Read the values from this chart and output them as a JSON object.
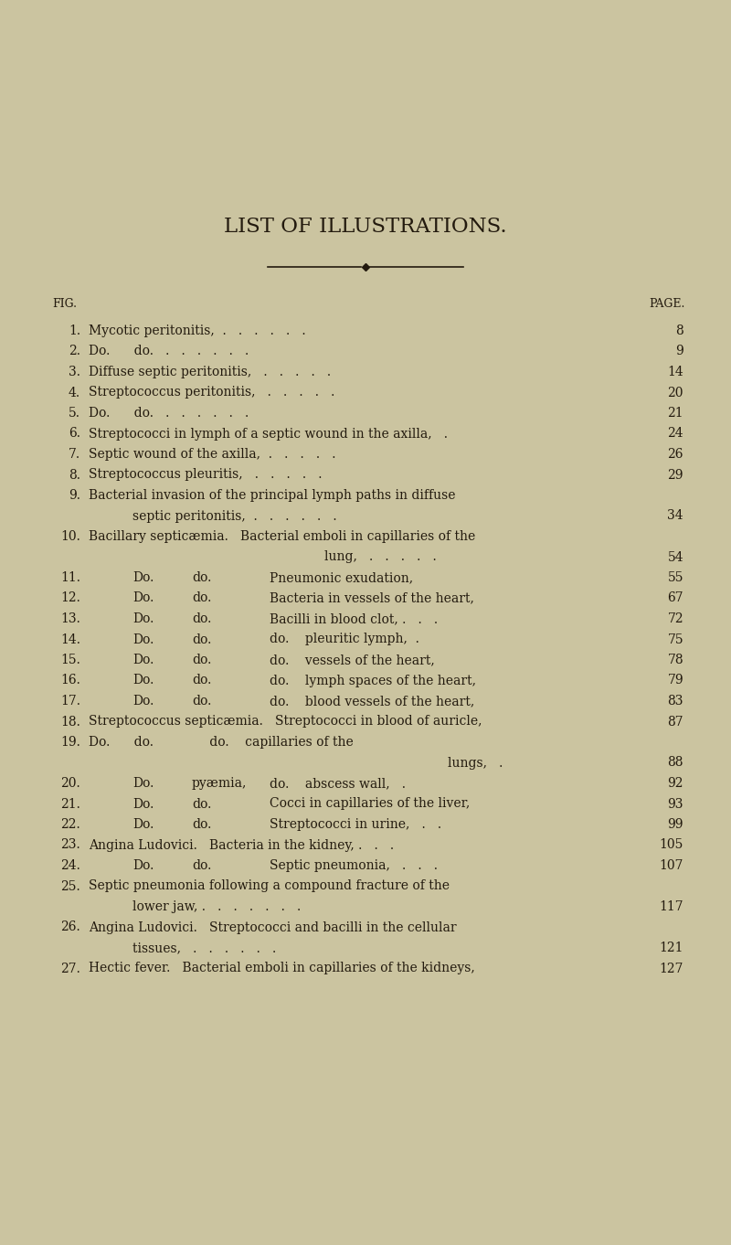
{
  "bg_color": "#cbc4a0",
  "text_color": "#231a0e",
  "title": "LIST OF ILLUSTRATIONS.",
  "title_fontsize": 16.5,
  "header_fig": "FIG.",
  "header_page": "PAGE.",
  "header_fontsize": 9.0,
  "body_fontsize": 10.0,
  "lines": [
    {
      "type": "entry",
      "num": "1.",
      "text": "Mycotic peritonitis,  .   .   .   .   .   .",
      "page": "8"
    },
    {
      "type": "entry",
      "num": "2.",
      "text": "Do.      do.   .   .   .   .   .   .",
      "page": "9"
    },
    {
      "type": "entry",
      "num": "3.",
      "text": "Diffuse septic peritonitis,   .   .   .   .   .",
      "page": "14"
    },
    {
      "type": "entry",
      "num": "4.",
      "text": "Streptococcus peritonitis,   .   .   .   .   .",
      "page": "20"
    },
    {
      "type": "entry",
      "num": "5.",
      "text": "Do.      do.   .   .   .   .   .   .",
      "page": "21"
    },
    {
      "type": "entry",
      "num": "6.",
      "text": "Streptococci in lymph of a septic wound in the axilla,   .",
      "page": "24"
    },
    {
      "type": "entry",
      "num": "7.",
      "text": "Septic wound of the axilla,  .   .   .   .   .",
      "page": "26"
    },
    {
      "type": "entry",
      "num": "8.",
      "text": "Streptococcus pleuritis,   .   .   .   .   .",
      "page": "29"
    },
    {
      "type": "entry_cont1",
      "num": "9.",
      "text1": "Bacterial invasion of the principal lymph paths in diffuse",
      "text2": "septic peritonitis,  .   .   .   .   .   .",
      "page": "34"
    },
    {
      "type": "entry_cont2",
      "num": "10.",
      "text1": "Bacillary septicæmia.   Bacterial emboli in capillaries of the",
      "text2": "lung,   .   .   .   .   .",
      "page": "54"
    },
    {
      "type": "entry3col",
      "num": "11.",
      "c1": "Do.",
      "c2": "do.",
      "c3": "Pneumonic exudation,",
      "dots": ".   .",
      "page": "55"
    },
    {
      "type": "entry3col",
      "num": "12.",
      "c1": "Do.",
      "c2": "do.",
      "c3": "Bacteria in vessels of the heart,",
      "dots": ".",
      "page": "67"
    },
    {
      "type": "entry3col",
      "num": "13.",
      "c1": "Do.",
      "c2": "do.",
      "c3": "Bacilli in blood clot, .   .   .",
      "dots": ".",
      "page": "72"
    },
    {
      "type": "entry3col",
      "num": "14.",
      "c1": "Do.",
      "c2": "do.",
      "c3": "do.    pleuritic lymph,  .",
      "dots": ".",
      "page": "75"
    },
    {
      "type": "entry3col",
      "num": "15.",
      "c1": "Do.",
      "c2": "do.",
      "c3": "do.    vessels of the heart,",
      "dots": ".",
      "page": "78"
    },
    {
      "type": "entry3col",
      "num": "16.",
      "c1": "Do.",
      "c2": "do.",
      "c3": "do.    lymph spaces of the heart,",
      "dots": "",
      "page": "79"
    },
    {
      "type": "entry3col",
      "num": "17.",
      "c1": "Do.",
      "c2": "do.",
      "c3": "do.    blood vessels of the heart,",
      "dots": "",
      "page": "83"
    },
    {
      "type": "entry",
      "num": "18.",
      "text": "Streptococcus septicæmia.   Streptococci in blood of auricle,",
      "page": "87"
    },
    {
      "type": "entry_cont2r",
      "num": "19.",
      "text1": "Do.      do.              do.    capillaries of the",
      "text2": "lungs,   .",
      "page": "88"
    },
    {
      "type": "entry3col",
      "num": "20.",
      "c1": "Do.",
      "c2": "pyæmia,",
      "c3": "do.    abscess wall,   .",
      "dots": "",
      "page": "92"
    },
    {
      "type": "entry3col",
      "num": "21.",
      "c1": "Do.",
      "c2": "do.",
      "c3": "Cocci in capillaries of the liver,",
      "dots": "",
      "page": "93"
    },
    {
      "type": "entry3col",
      "num": "22.",
      "c1": "Do.",
      "c2": "do.",
      "c3": "Streptococci in urine,   .   .",
      "dots": "",
      "page": "99"
    },
    {
      "type": "entry",
      "num": "23.",
      "text": "Angina Ludovici.   Bacteria in the kidney, .   .   .",
      "page": "105"
    },
    {
      "type": "entry3col",
      "num": "24.",
      "c1": "Do.",
      "c2": "do.",
      "c3": "Septic pneumonia,   .   .   .",
      "dots": "",
      "page": "107"
    },
    {
      "type": "entry_cont1",
      "num": "25.",
      "text1": "Septic pneumonia following a compound fracture of the",
      "text2": "lower jaw, .   .   .   .   .   .   .",
      "page": "117"
    },
    {
      "type": "entry_cont1b",
      "num": "26.",
      "text1": "Angina Ludovici.   Streptococci and bacilli in the cellular",
      "text2": "tissues,   .   .   .   .   .   .",
      "page": "121"
    },
    {
      "type": "entry",
      "num": "27.",
      "text": "Hectic fever.   Bacterial emboli in capillaries of the kidneys,",
      "page": "127"
    }
  ]
}
